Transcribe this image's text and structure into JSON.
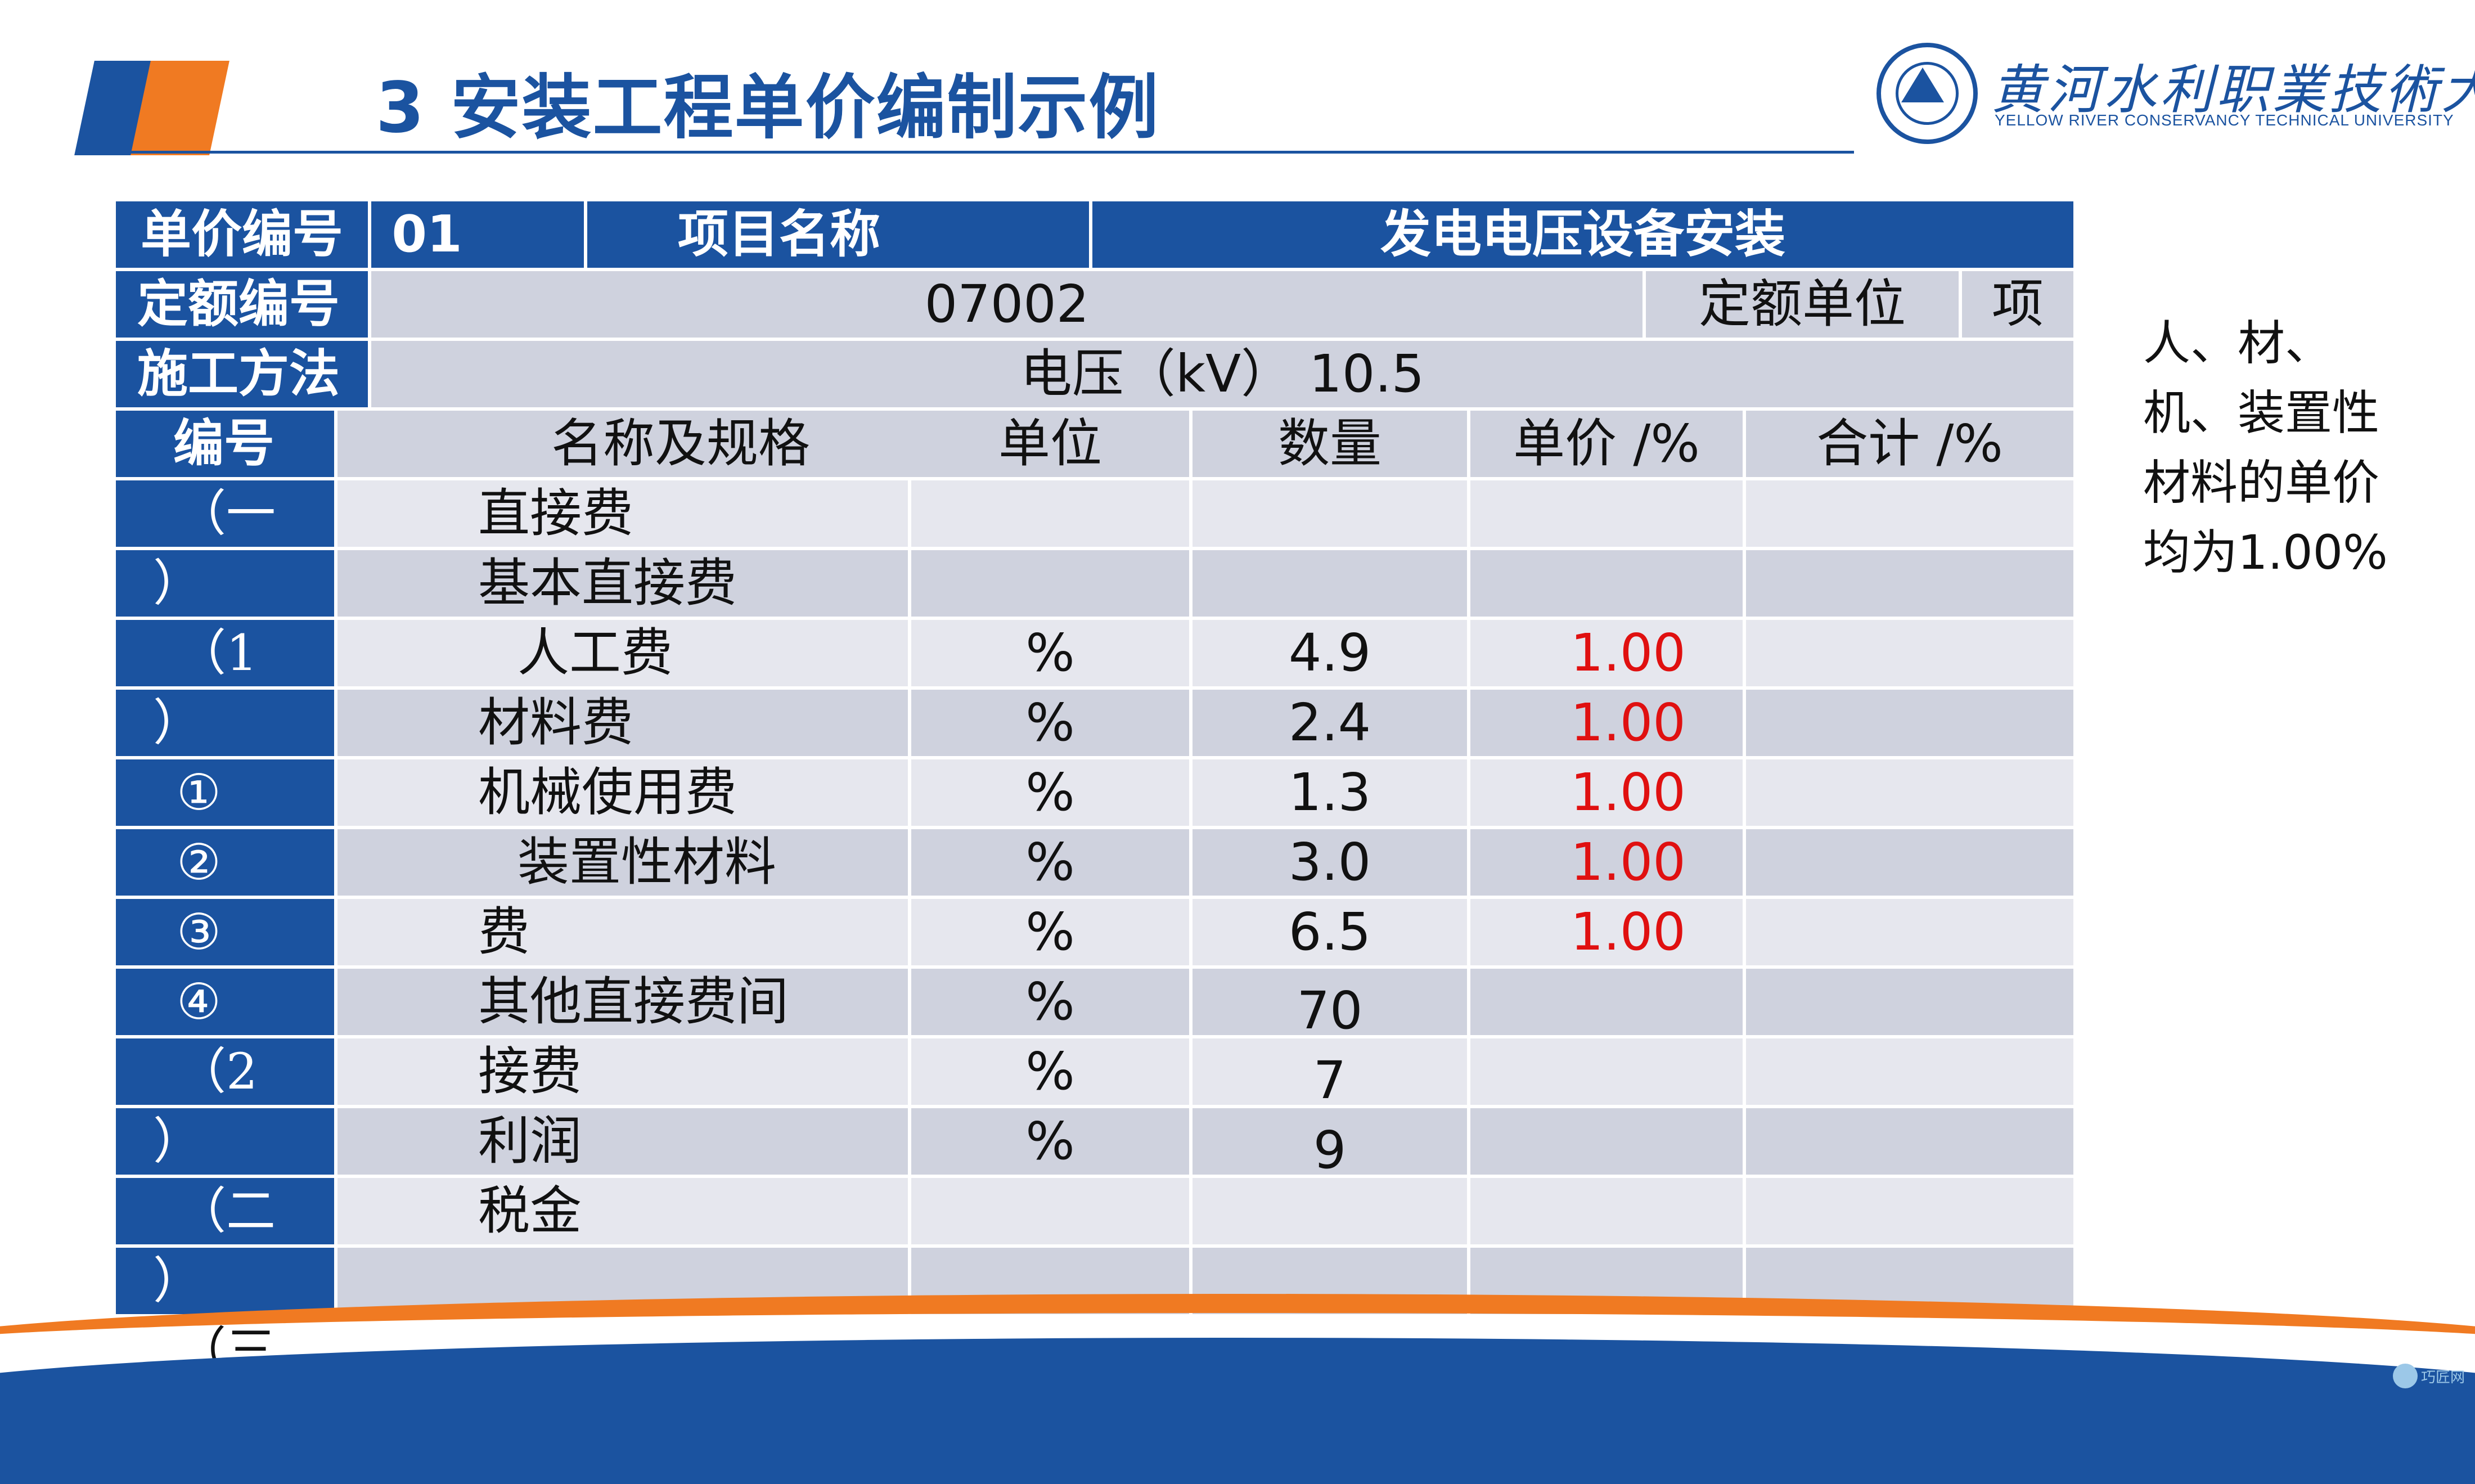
{
  "slide": {
    "title": "3 安装工程单价编制示例",
    "logo": {
      "cn": "黄河水利职業技術大學",
      "en": "YELLOW RIVER CONSERVANCY TECHNICAL UNIVERSITY"
    },
    "side_note": "人、材、机、装置性材料的单价均为1.00%",
    "watermark": "巧匠网"
  },
  "table": {
    "r1": {
      "label1": "单价编号",
      "value1": "01",
      "label2": "项目名称",
      "value2": "发电电压设备安装"
    },
    "r2": {
      "label": "定额编号",
      "value": "07002",
      "unit_label": "定额单位",
      "unit_value": "项"
    },
    "r3": {
      "label": "施工方法",
      "value": "电压（kV） 10.5"
    },
    "columns": [
      "编号",
      "名称及规格",
      "单位",
      "数量",
      "单价 /%",
      "合计 /%"
    ],
    "seq_lines": [
      "（一",
      "）",
      "（1",
      "）",
      "①",
      "②",
      "③",
      "④",
      "（2",
      "）",
      "（二",
      "）",
      "（三",
      "）"
    ],
    "rows": [
      {
        "name": "直接费",
        "unit": "",
        "qty": "",
        "price": ""
      },
      {
        "name": "基本直接费",
        "unit": "",
        "qty": "",
        "price": ""
      },
      {
        "name": "人工费",
        "unit": "%",
        "qty": "4.9",
        "price": "1.00"
      },
      {
        "name": "材料费",
        "unit": "%",
        "qty": "2.4",
        "price": "1.00"
      },
      {
        "name": "机械使用费",
        "unit": "%",
        "qty": "1.3",
        "price": "1.00"
      },
      {
        "name": "装置性材料",
        "unit": "%",
        "qty": "3.0",
        "price": "1.00"
      },
      {
        "name": "费",
        "unit": "%",
        "qty": "6.5",
        "price": "1.00"
      },
      {
        "name": "其他直接费间",
        "unit": "%",
        "qty": "70",
        "price": ""
      },
      {
        "name": "接费",
        "unit": "%",
        "qty": "7",
        "price": ""
      },
      {
        "name": "利润",
        "unit": "%",
        "qty": "9",
        "price": ""
      },
      {
        "name": "税金",
        "unit": "",
        "qty": "",
        "price": ""
      },
      {
        "name": "",
        "unit": "",
        "qty": "",
        "price": ""
      }
    ]
  }
}
